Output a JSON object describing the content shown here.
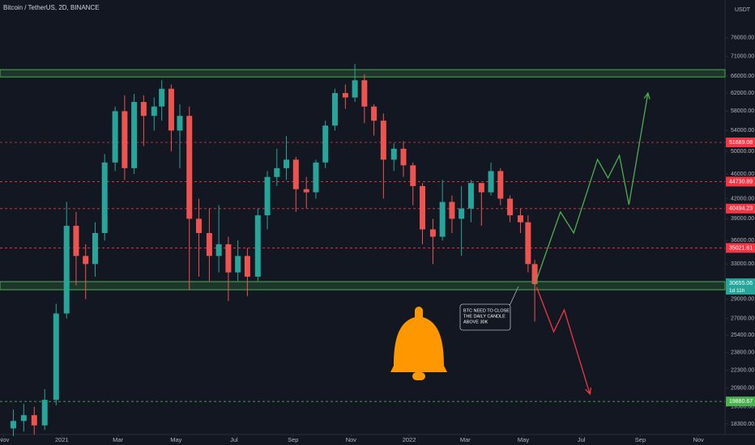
{
  "chart_data": {
    "type": "candlestick",
    "title": "Bitcoin / TetherUS, 2D, BINANCE",
    "currency": "USDT",
    "countdown": "1d 11h",
    "log_scale": true,
    "grid": false,
    "up_color": "#26a69a",
    "down_color": "#ef5350",
    "xlim": [
      -4,
      758
    ],
    "ylim": [
      17600,
      87400
    ],
    "xticks": [
      {
        "value": 0,
        "label": "Nov"
      },
      {
        "value": 61,
        "label": "2021"
      },
      {
        "value": 120,
        "label": "Mar"
      },
      {
        "value": 181,
        "label": "May"
      },
      {
        "value": 242,
        "label": "Jul"
      },
      {
        "value": 304,
        "label": "Sep"
      },
      {
        "value": 365,
        "label": "Nov"
      },
      {
        "value": 426,
        "label": "2022"
      },
      {
        "value": 485,
        "label": "Mar"
      },
      {
        "value": 546,
        "label": "May"
      },
      {
        "value": 607,
        "label": "Jul"
      },
      {
        "value": 669,
        "label": "Sep"
      },
      {
        "value": 730,
        "label": "Nov"
      }
    ],
    "yticks": [
      {
        "value": 18300,
        "label": "18300.00"
      },
      {
        "value": 19500,
        "label": "19500.00"
      },
      {
        "value": 20900,
        "label": "20900.00"
      },
      {
        "value": 22300,
        "label": "22300.00"
      },
      {
        "value": 23800,
        "label": "23800.00"
      },
      {
        "value": 25400,
        "label": "25400.00"
      },
      {
        "value": 27000,
        "label": "27000.00"
      },
      {
        "value": 29000,
        "label": "29000.00"
      },
      {
        "value": 33000,
        "label": "33000.00"
      },
      {
        "value": 36000,
        "label": "36000.00"
      },
      {
        "value": 39000,
        "label": "39000.00"
      },
      {
        "value": 42000,
        "label": "42000.00"
      },
      {
        "value": 46000,
        "label": "46000.00"
      },
      {
        "value": 50000,
        "label": "50000.00"
      },
      {
        "value": 54000,
        "label": "54000.00"
      },
      {
        "value": 58000,
        "label": "58000.00"
      },
      {
        "value": 62000,
        "label": "62000.00"
      },
      {
        "value": 66000,
        "label": "66000.00"
      },
      {
        "value": 71000,
        "label": "71000.00"
      },
      {
        "value": 76000,
        "label": "76000.00"
      }
    ],
    "candles": {
      "x": [
        10,
        21,
        32,
        43,
        55,
        66,
        76,
        86,
        96,
        106,
        117,
        127,
        137,
        147,
        158,
        166,
        176,
        185,
        195,
        205,
        216,
        226,
        236,
        246,
        256,
        267,
        277,
        287,
        297,
        307,
        318,
        328,
        338,
        348,
        359,
        369,
        379,
        389,
        399,
        410,
        420,
        430,
        440,
        451,
        461,
        471,
        481,
        491,
        502,
        512,
        522,
        532,
        543,
        551,
        558
      ],
      "open": [
        18000,
        18500,
        18900,
        18200,
        20000,
        27500,
        38000,
        34000,
        33000,
        37000,
        48000,
        58000,
        47000,
        60000,
        57000,
        59000,
        63000,
        54000,
        57000,
        39000,
        37000,
        34000,
        35500,
        32000,
        34000,
        31500,
        39500,
        45500,
        47000,
        48500,
        43500,
        43000,
        48000,
        55000,
        62000,
        61000,
        65000,
        59000,
        56000,
        48500,
        50500,
        47500,
        44000,
        37500,
        36500,
        41500,
        39000,
        40500,
        44500,
        43000,
        46500,
        42000,
        39500,
        38500,
        33000
      ],
      "high": [
        19300,
        19700,
        19500,
        20800,
        28500,
        41500,
        40000,
        35500,
        38500,
        49500,
        59000,
        61500,
        61800,
        61500,
        61000,
        65000,
        64000,
        59500,
        59000,
        42000,
        40500,
        41000,
        36500,
        36000,
        35000,
        40500,
        46500,
        50500,
        52900,
        49000,
        45500,
        48500,
        56000,
        63000,
        64000,
        69000,
        66500,
        59500,
        57500,
        51500,
        51900,
        48000,
        44500,
        39000,
        45000,
        42500,
        44000,
        45000,
        44500,
        48000,
        47000,
        42500,
        40500,
        39500,
        33500
      ],
      "low": [
        17500,
        17800,
        17600,
        17900,
        19600,
        27000,
        30500,
        29000,
        31500,
        36000,
        46500,
        45000,
        46000,
        51000,
        54000,
        56000,
        50000,
        47000,
        30000,
        31500,
        31000,
        32000,
        28800,
        31000,
        29300,
        31000,
        37500,
        44000,
        45000,
        40000,
        40500,
        42000,
        47000,
        54000,
        58500,
        60000,
        55500,
        53000,
        42000,
        46500,
        45500,
        41000,
        35500,
        33000,
        36000,
        37000,
        34000,
        38500,
        38000,
        42500,
        41000,
        38500,
        37000,
        32000,
        26700
      ],
      "close": [
        18500,
        18900,
        18200,
        20000,
        27500,
        38000,
        34000,
        33000,
        37000,
        48000,
        58000,
        47000,
        60000,
        57000,
        59000,
        63000,
        54000,
        57000,
        39000,
        37000,
        34000,
        35500,
        32000,
        34000,
        31500,
        39500,
        45500,
        47000,
        48500,
        43500,
        43000,
        48000,
        55000,
        62000,
        61000,
        65000,
        59000,
        56000,
        48500,
        50500,
        47500,
        44000,
        37500,
        36500,
        41500,
        39000,
        40500,
        44500,
        43000,
        46500,
        42000,
        39500,
        38500,
        33000,
        30655.06
      ]
    },
    "levels": [
      {
        "value": 51689.08,
        "color": "#f23645"
      },
      {
        "value": 44730.89,
        "color": "#f23645"
      },
      {
        "value": 40494.23,
        "color": "#f23645"
      },
      {
        "value": 35021.61,
        "color": "#f23645"
      },
      {
        "value": 19880.67,
        "color": "#4caf50"
      }
    ],
    "zones": [
      {
        "low": 65800,
        "high": 67600,
        "color": "#4caf50"
      },
      {
        "low": 30020,
        "high": 30930,
        "color": "#4caf50"
      }
    ],
    "projections": [
      {
        "color": "#4caf50",
        "x": [
          558,
          585,
          599,
          624,
          635,
          647,
          657,
          677
        ],
        "values": [
          30560,
          39990,
          37000,
          48540,
          45330,
          49270,
          41070,
          62000
        ]
      },
      {
        "color": "#f23645",
        "x": [
          560,
          578,
          589,
          616
        ],
        "values": [
          30300,
          25700,
          27860,
          20430
        ]
      }
    ],
    "note": [
      "BTC NEED TO CLOSE",
      "THE DAILY CANDLE",
      "ABOVE 30K"
    ]
  }
}
